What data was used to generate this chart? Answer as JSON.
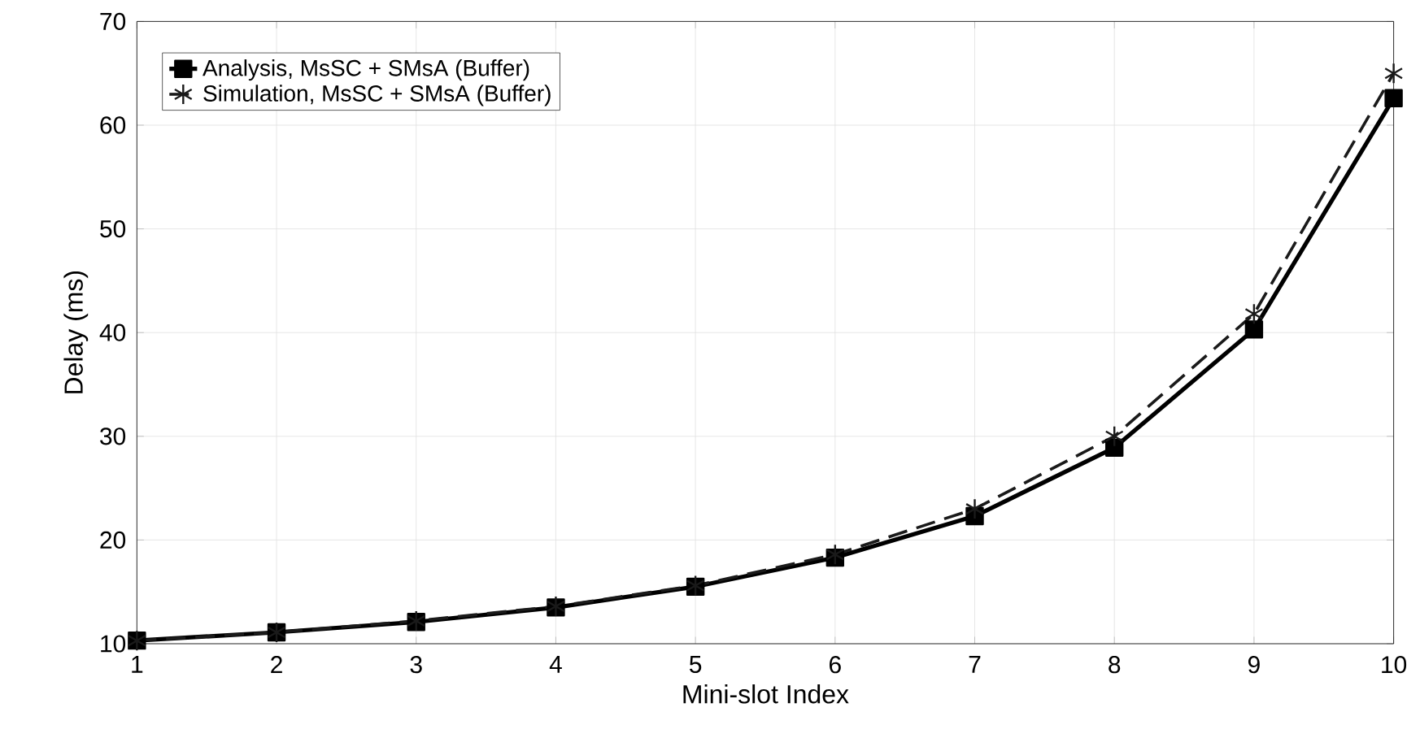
{
  "chart_data": {
    "type": "line",
    "xlabel": "Mini-slot Index",
    "ylabel": "Delay (ms)",
    "x": [
      1,
      2,
      3,
      4,
      5,
      6,
      7,
      8,
      9,
      10
    ],
    "series": [
      {
        "name": "Analysis, MsSC + SMsA (Buffer)",
        "color": "#000000",
        "marker": "square",
        "line_style": "solid",
        "values": [
          10.3,
          11.1,
          12.1,
          13.5,
          15.5,
          18.3,
          22.3,
          28.9,
          40.3,
          62.6
        ]
      },
      {
        "name": "Simulation, MsSC + SMsA (Buffer)",
        "color": "#1a1a1a",
        "marker": "cross",
        "line_style": "dashed",
        "values": [
          10.3,
          11.1,
          12.2,
          13.6,
          15.6,
          18.6,
          23.0,
          30.0,
          41.8,
          65.0
        ]
      }
    ],
    "xlim": [
      1,
      10
    ],
    "xticks": [
      1,
      2,
      3,
      4,
      5,
      6,
      7,
      8,
      9,
      10
    ],
    "ylim": [
      10,
      70
    ],
    "yticks": [
      10,
      20,
      30,
      40,
      50,
      60,
      70
    ],
    "grid": true,
    "legend": "top left"
  }
}
